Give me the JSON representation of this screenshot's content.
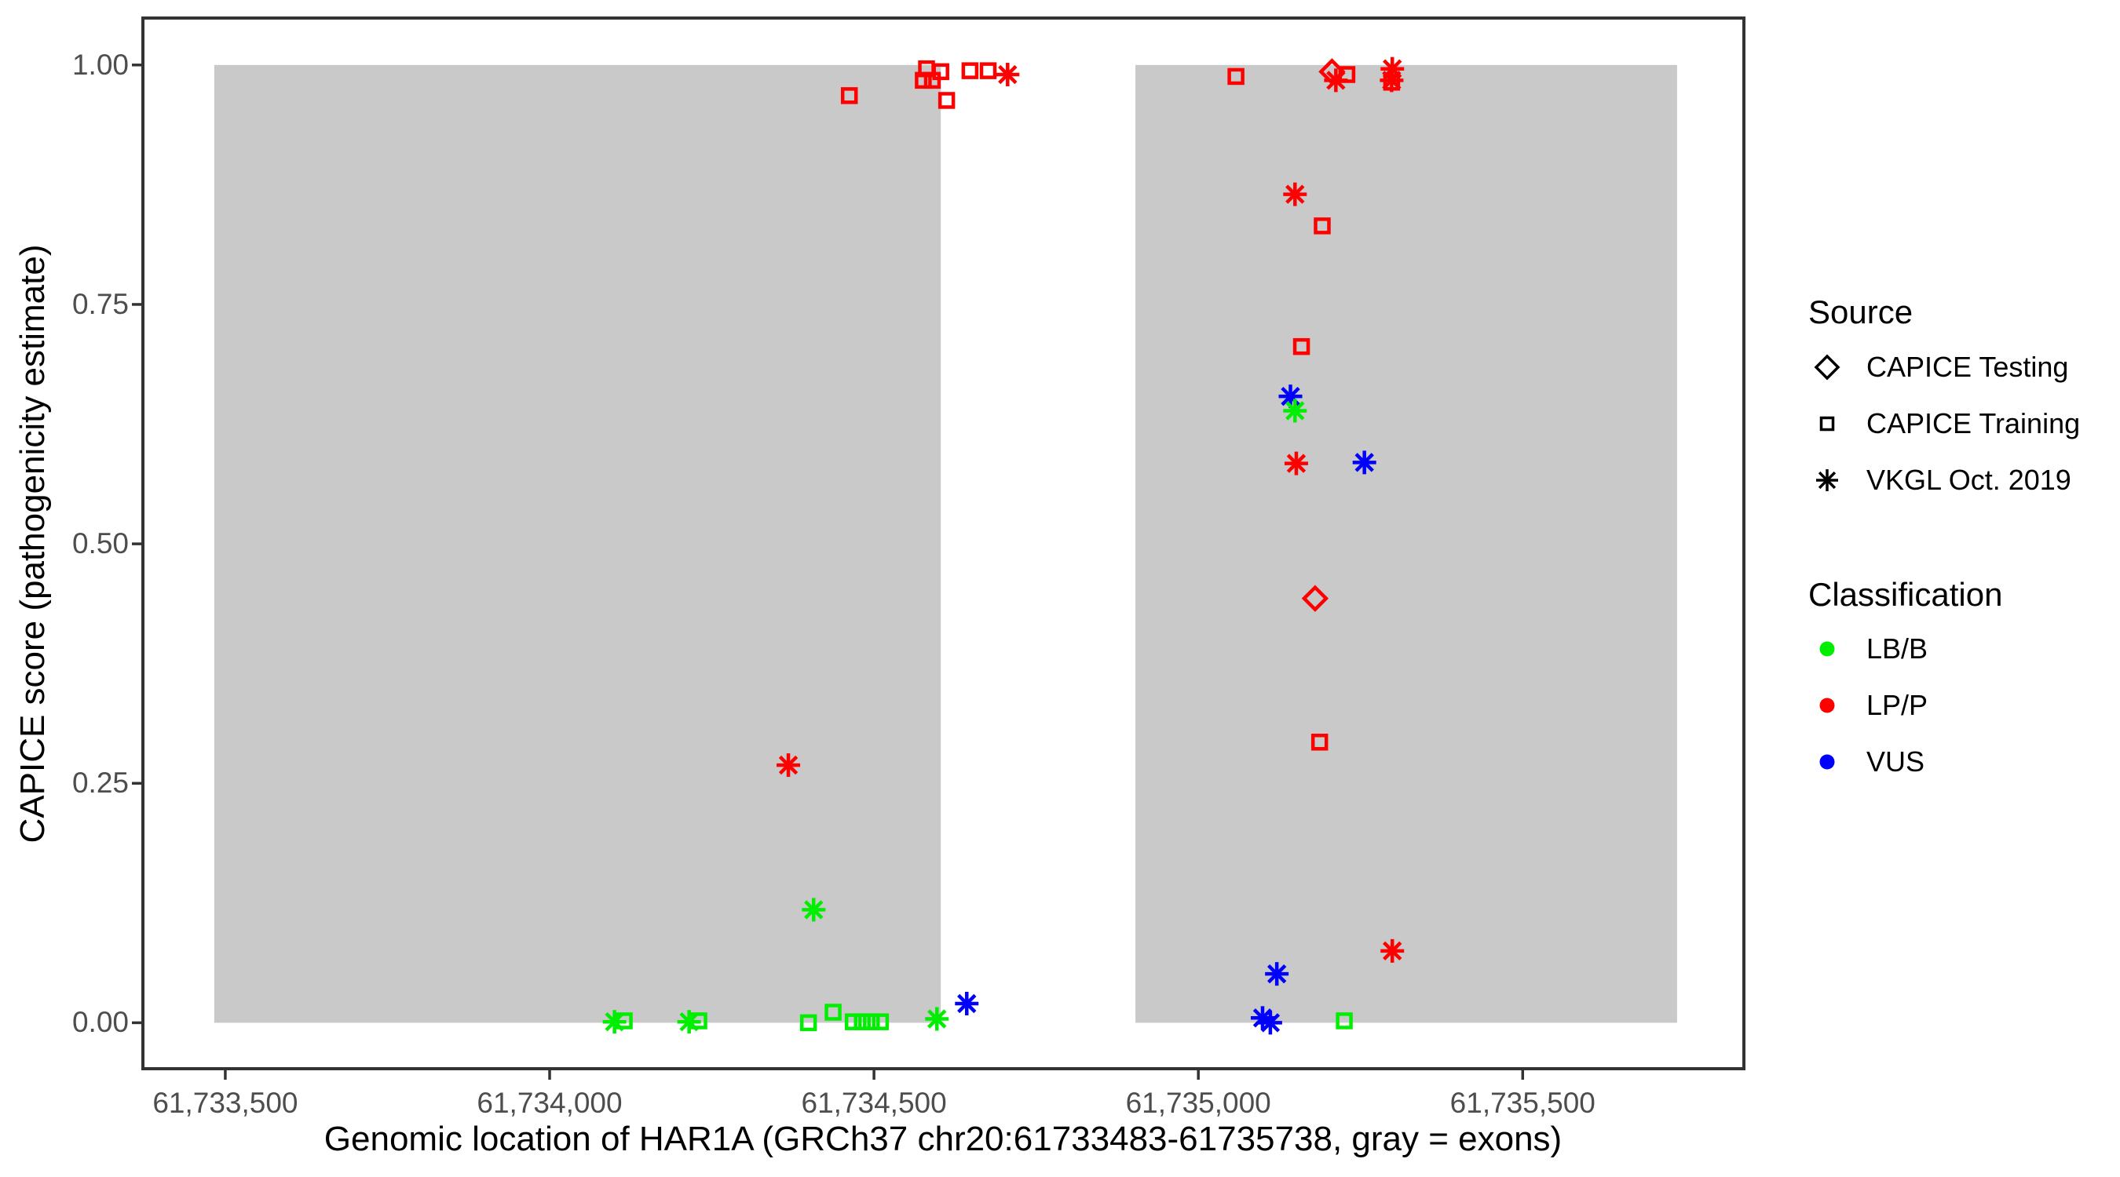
{
  "chart_data": {
    "type": "scatter",
    "xlabel": "Genomic location of HAR1A (GRCh37 chr20:61733483-61735738, gray = exons)",
    "ylabel": "CAPICE score (pathogenicity estimate)",
    "xlim": [
      61733373,
      61735841
    ],
    "ylim": [
      -0.048,
      1.049
    ],
    "grid": "off",
    "legend_position": "right",
    "x_ticks": [
      {
        "value": 61733500,
        "label": "61,733,500"
      },
      {
        "value": 61734000,
        "label": "61,734,000"
      },
      {
        "value": 61734500,
        "label": "61,734,500"
      },
      {
        "value": 61735000,
        "label": "61,735,000"
      },
      {
        "value": 61735500,
        "label": "61,735,500"
      }
    ],
    "y_ticks": [
      {
        "value": 0.0,
        "label": "0.00"
      },
      {
        "value": 0.25,
        "label": "0.25"
      },
      {
        "value": 0.5,
        "label": "0.50"
      },
      {
        "value": 0.75,
        "label": "0.75"
      },
      {
        "value": 1.0,
        "label": "1.00"
      }
    ],
    "exons": [
      {
        "start": 61733483,
        "end": 61734603
      },
      {
        "start": 61734903,
        "end": 61735738
      }
    ],
    "exon_fill": "#C9C9C9",
    "exon_score_min": 0.0,
    "exon_score_max": 1.0,
    "source_shapes": {
      "CAPICE Testing": "diamond",
      "CAPICE Training": "square",
      "VKGL Oct. 2019": "asterisk"
    },
    "classification_colors": {
      "LB/B": "#00EE00",
      "LP/P": "#FF0000",
      "VUS": "#0000FF"
    },
    "points": [
      {
        "pos": 61734462,
        "score": 0.968,
        "source": "CAPICE Training",
        "classification": "LP/P"
      },
      {
        "pos": 61734576,
        "score": 0.984,
        "source": "CAPICE Training",
        "classification": "LP/P"
      },
      {
        "pos": 61734581,
        "score": 0.996,
        "source": "CAPICE Training",
        "classification": "LP/P"
      },
      {
        "pos": 61734590,
        "score": 0.984,
        "source": "CAPICE Training",
        "classification": "LP/P"
      },
      {
        "pos": 61734603,
        "score": 0.993,
        "source": "CAPICE Training",
        "classification": "LP/P"
      },
      {
        "pos": 61734612,
        "score": 0.963,
        "source": "CAPICE Training",
        "classification": "LP/P"
      },
      {
        "pos": 61734648,
        "score": 0.994,
        "source": "CAPICE Training",
        "classification": "LP/P"
      },
      {
        "pos": 61734676,
        "score": 0.994,
        "source": "CAPICE Training",
        "classification": "LP/P"
      },
      {
        "pos": 61734706,
        "score": 0.99,
        "source": "VKGL Oct. 2019",
        "classification": "LP/P"
      },
      {
        "pos": 61735058,
        "score": 0.988,
        "source": "CAPICE Training",
        "classification": "LP/P"
      },
      {
        "pos": 61735206,
        "score": 0.993,
        "source": "CAPICE Testing",
        "classification": "LP/P"
      },
      {
        "pos": 61735212,
        "score": 0.984,
        "source": "VKGL Oct. 2019",
        "classification": "LP/P"
      },
      {
        "pos": 61735229,
        "score": 0.99,
        "source": "CAPICE Training",
        "classification": "LP/P"
      },
      {
        "pos": 61735299,
        "score": 0.996,
        "source": "VKGL Oct. 2019",
        "classification": "LP/P"
      },
      {
        "pos": 61735298,
        "score": 0.984,
        "source": "VKGL Oct. 2019",
        "classification": "LP/P"
      },
      {
        "pos": 61735298,
        "score": 0.982,
        "source": "CAPICE Training",
        "classification": "LP/P"
      },
      {
        "pos": 61735149,
        "score": 0.865,
        "source": "VKGL Oct. 2019",
        "classification": "LP/P"
      },
      {
        "pos": 61735191,
        "score": 0.832,
        "source": "CAPICE Training",
        "classification": "LP/P"
      },
      {
        "pos": 61735159,
        "score": 0.706,
        "source": "CAPICE Training",
        "classification": "LP/P"
      },
      {
        "pos": 61735142,
        "score": 0.654,
        "source": "VKGL Oct. 2019",
        "classification": "VUS"
      },
      {
        "pos": 61735149,
        "score": 0.639,
        "source": "VKGL Oct. 2019",
        "classification": "LB/B"
      },
      {
        "pos": 61735151,
        "score": 0.584,
        "source": "VKGL Oct. 2019",
        "classification": "LP/P"
      },
      {
        "pos": 61735256,
        "score": 0.585,
        "source": "VKGL Oct. 2019",
        "classification": "VUS"
      },
      {
        "pos": 61735180,
        "score": 0.443,
        "source": "CAPICE Testing",
        "classification": "LP/P"
      },
      {
        "pos": 61735187,
        "score": 0.293,
        "source": "CAPICE Training",
        "classification": "LP/P"
      },
      {
        "pos": 61734368,
        "score": 0.269,
        "source": "VKGL Oct. 2019",
        "classification": "LP/P"
      },
      {
        "pos": 61734407,
        "score": 0.118,
        "source": "VKGL Oct. 2019",
        "classification": "LB/B"
      },
      {
        "pos": 61734100,
        "score": 0.001,
        "source": "VKGL Oct. 2019",
        "classification": "LB/B"
      },
      {
        "pos": 61734115,
        "score": 0.002,
        "source": "CAPICE Training",
        "classification": "LB/B"
      },
      {
        "pos": 61734215,
        "score": 0.001,
        "source": "VKGL Oct. 2019",
        "classification": "LB/B"
      },
      {
        "pos": 61734230,
        "score": 0.002,
        "source": "CAPICE Training",
        "classification": "LB/B"
      },
      {
        "pos": 61734399,
        "score": 0.0,
        "source": "CAPICE Training",
        "classification": "LB/B"
      },
      {
        "pos": 61734437,
        "score": 0.011,
        "source": "CAPICE Training",
        "classification": "LB/B"
      },
      {
        "pos": 61734468,
        "score": 0.001,
        "source": "CAPICE Training",
        "classification": "LB/B"
      },
      {
        "pos": 61734482,
        "score": 0.001,
        "source": "CAPICE Training",
        "classification": "LB/B"
      },
      {
        "pos": 61734496,
        "score": 0.001,
        "source": "CAPICE Training",
        "classification": "LB/B"
      },
      {
        "pos": 61734510,
        "score": 0.001,
        "source": "CAPICE Training",
        "classification": "LB/B"
      },
      {
        "pos": 61734597,
        "score": 0.004,
        "source": "VKGL Oct. 2019",
        "classification": "LB/B"
      },
      {
        "pos": 61734643,
        "score": 0.02,
        "source": "VKGL Oct. 2019",
        "classification": "VUS"
      },
      {
        "pos": 61735121,
        "score": 0.051,
        "source": "VKGL Oct. 2019",
        "classification": "VUS"
      },
      {
        "pos": 61735099,
        "score": 0.005,
        "source": "VKGL Oct. 2019",
        "classification": "VUS"
      },
      {
        "pos": 61735111,
        "score": 0.0,
        "source": "VKGL Oct. 2019",
        "classification": "VUS"
      },
      {
        "pos": 61735225,
        "score": 0.002,
        "source": "CAPICE Training",
        "classification": "LB/B"
      },
      {
        "pos": 61735299,
        "score": 0.075,
        "source": "VKGL Oct. 2019",
        "classification": "LP/P"
      }
    ]
  },
  "axes": {
    "x_title": "Genomic location of HAR1A (GRCh37 chr20:61733483-61735738, gray = exons)",
    "y_title": "CAPICE score (pathogenicity estimate)"
  },
  "legend": {
    "source": {
      "title": "Source",
      "items": [
        {
          "label": "CAPICE Testing",
          "shape": "diamond"
        },
        {
          "label": "CAPICE Training",
          "shape": "square"
        },
        {
          "label": "VKGL Oct. 2019",
          "shape": "asterisk"
        }
      ]
    },
    "classification": {
      "title": "Classification",
      "items": [
        {
          "label": "LB/B",
          "color": "#00EE00"
        },
        {
          "label": "LP/P",
          "color": "#FF0000"
        },
        {
          "label": "VUS",
          "color": "#0000FF"
        }
      ]
    }
  }
}
